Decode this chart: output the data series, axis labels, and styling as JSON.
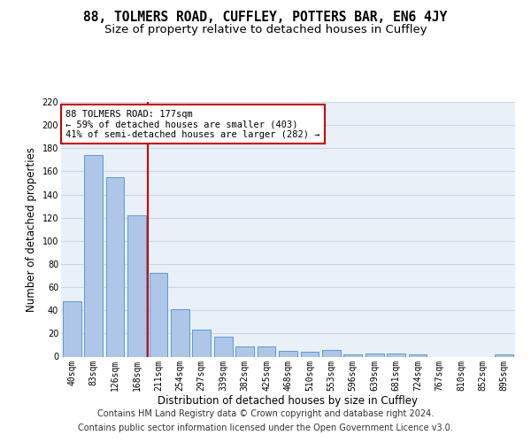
{
  "title_line1": "88, TOLMERS ROAD, CUFFLEY, POTTERS BAR, EN6 4JY",
  "title_line2": "Size of property relative to detached houses in Cuffley",
  "xlabel": "Distribution of detached houses by size in Cuffley",
  "ylabel": "Number of detached properties",
  "categories": [
    "40sqm",
    "83sqm",
    "126sqm",
    "168sqm",
    "211sqm",
    "254sqm",
    "297sqm",
    "339sqm",
    "382sqm",
    "425sqm",
    "468sqm",
    "510sqm",
    "553sqm",
    "596sqm",
    "639sqm",
    "681sqm",
    "724sqm",
    "767sqm",
    "810sqm",
    "852sqm",
    "895sqm"
  ],
  "values": [
    48,
    174,
    155,
    122,
    72,
    41,
    23,
    17,
    9,
    9,
    5,
    4,
    6,
    2,
    3,
    3,
    2,
    0,
    0,
    0,
    2
  ],
  "bar_color": "#aec6e8",
  "bar_edge_color": "#5b9bd5",
  "vline_x": 3.5,
  "vline_color": "#cc0000",
  "annotation_line1": "88 TOLMERS ROAD: 177sqm",
  "annotation_line2": "← 59% of detached houses are smaller (403)",
  "annotation_line3": "41% of semi-detached houses are larger (282) →",
  "annotation_box_color": "#ffffff",
  "annotation_box_edge": "#cc0000",
  "ylim": [
    0,
    220
  ],
  "yticks": [
    0,
    20,
    40,
    60,
    80,
    100,
    120,
    140,
    160,
    180,
    200,
    220
  ],
  "grid_color": "#c8d8e8",
  "bg_color": "#eaf0f8",
  "footer_line1": "Contains HM Land Registry data © Crown copyright and database right 2024.",
  "footer_line2": "Contains public sector information licensed under the Open Government Licence v3.0.",
  "title_fontsize": 10.5,
  "subtitle_fontsize": 9.5,
  "axis_label_fontsize": 8.5,
  "tick_fontsize": 7.0,
  "annotation_fontsize": 7.5,
  "footer_fontsize": 7.0
}
